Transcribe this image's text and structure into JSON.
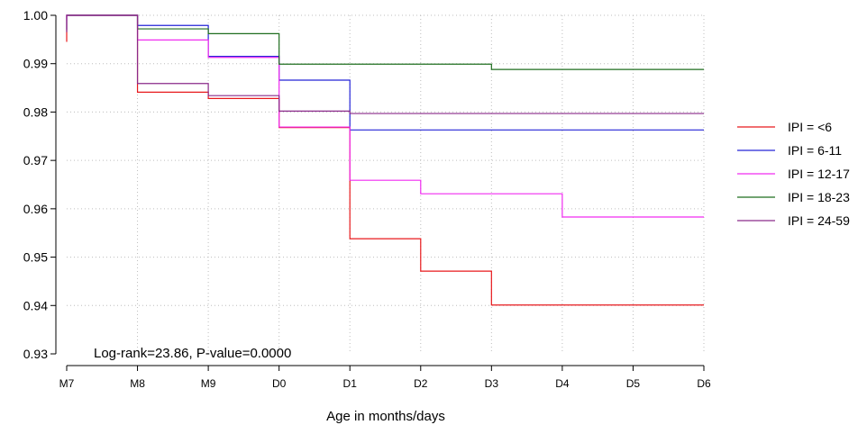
{
  "chart_data": {
    "type": "line",
    "title": "",
    "xlabel": "Age in months/days",
    "ylabel": "",
    "x_categories": [
      "M7",
      "M8",
      "M9",
      "D0",
      "D1",
      "D2",
      "D3",
      "D4",
      "D5",
      "D6"
    ],
    "ylim": [
      0.93,
      1.0
    ],
    "yticks": [
      "0.93",
      "0.94",
      "0.95",
      "0.96",
      "0.97",
      "0.98",
      "0.99",
      "1.00"
    ],
    "grid": true,
    "legend_position": "right",
    "annotation": "Log-rank=23.86, P-value=0.0000",
    "series": [
      {
        "name": "IPI = <6",
        "color": "#e8191c",
        "start": 0.9945,
        "steps": [
          1.0,
          0.9841,
          0.9828,
          0.9768,
          0.9538,
          0.9471,
          0.9401,
          0.9401,
          0.9401,
          0.9401
        ]
      },
      {
        "name": "IPI = 6-11",
        "color": "#2424d8",
        "start": 0.997,
        "steps": [
          1.0,
          0.9979,
          0.9915,
          0.9866,
          0.9763,
          0.9763,
          0.9763,
          0.9763,
          0.9763,
          0.9763
        ]
      },
      {
        "name": "IPI = 12-17",
        "color": "#f02cf0",
        "start": 0.999,
        "steps": [
          1.0,
          0.9949,
          0.9913,
          0.9769,
          0.9659,
          0.9631,
          0.9631,
          0.9583,
          0.9583,
          0.9583
        ]
      },
      {
        "name": "IPI = 18-23",
        "color": "#1f6e1f",
        "start": 1.0,
        "steps": [
          1.0,
          0.9972,
          0.9962,
          0.9899,
          0.9899,
          0.9899,
          0.9888,
          0.9888,
          0.9888,
          0.9888
        ]
      },
      {
        "name": "IPI = 24-59",
        "color": "#8a2a8a",
        "start": 0.9965,
        "steps": [
          1.0,
          0.9859,
          0.9834,
          0.9802,
          0.9797,
          0.9797,
          0.9797,
          0.9797,
          0.9797,
          0.9797
        ]
      }
    ]
  }
}
